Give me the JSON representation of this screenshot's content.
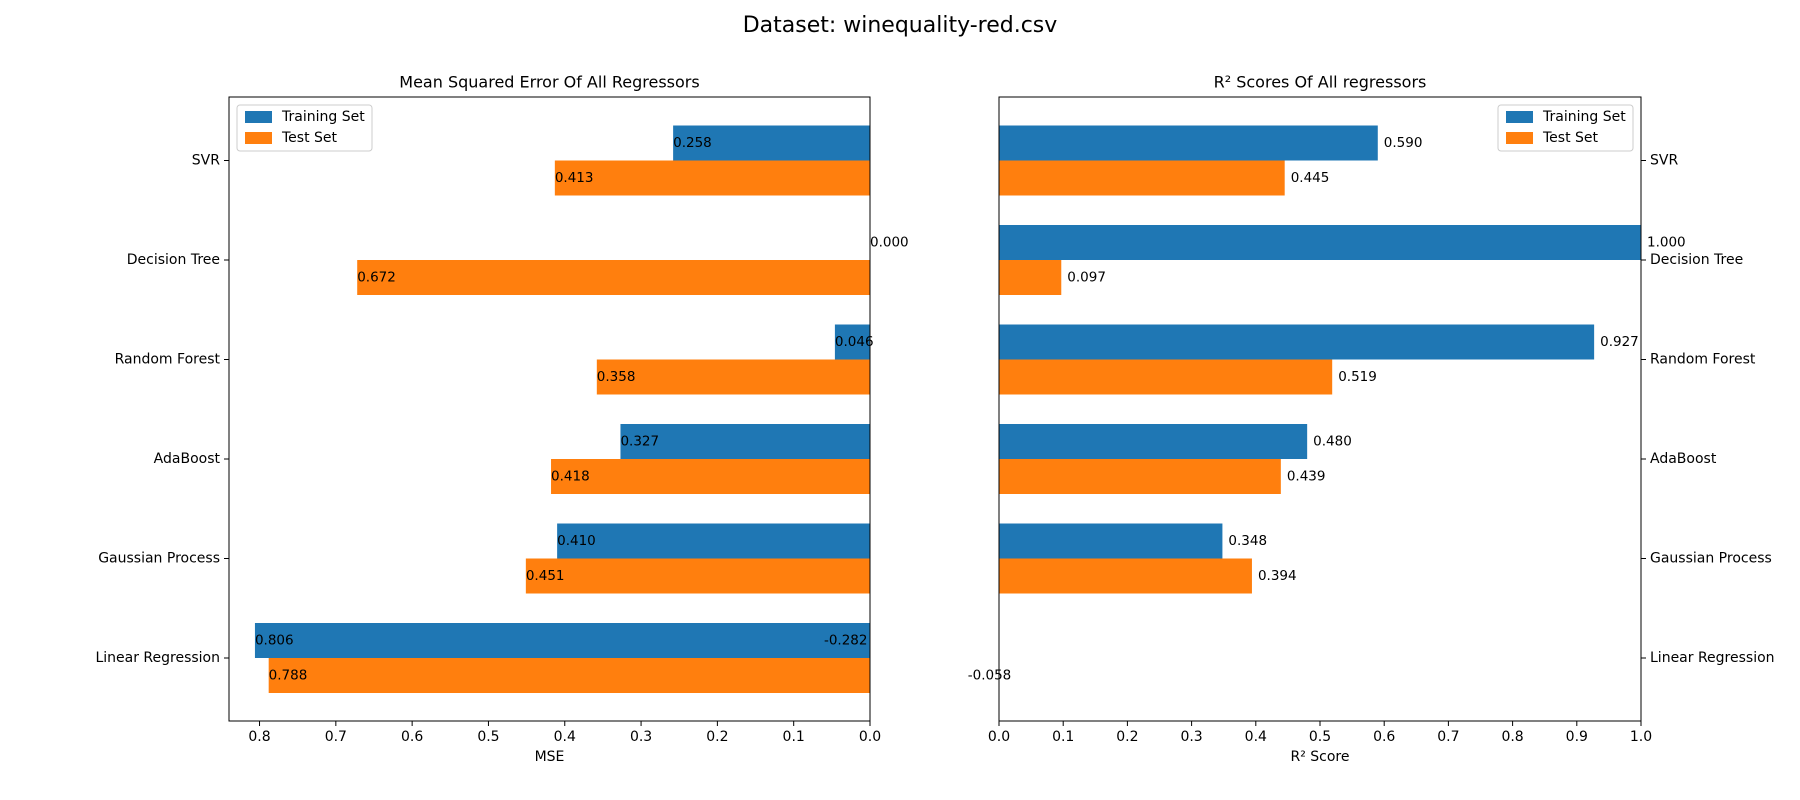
{
  "title": "Dataset: winequality-red.csv",
  "chart_data": [
    {
      "type": "barh",
      "title": "Mean Squared Error Of All Regressors",
      "xlabel": "MSE",
      "categories": [
        "SVR",
        "Decision Tree",
        "Random Forest",
        "AdaBoost",
        "Gaussian Process",
        "Linear Regression"
      ],
      "series": [
        {
          "name": "Training Set",
          "color": "#1f77b4",
          "values": [
            0.258,
            0.0,
            0.046,
            0.327,
            0.41,
            0.806
          ],
          "value_labels": [
            "0.258",
            "0.000",
            "0.046",
            "0.327",
            "0.410",
            "0.806"
          ]
        },
        {
          "name": "Test Set",
          "color": "#ff7f0e",
          "values": [
            0.413,
            0.672,
            0.358,
            0.418,
            0.451,
            0.788
          ],
          "value_labels": [
            "0.413",
            "0.672",
            "0.358",
            "0.418",
            "0.451",
            "0.788"
          ]
        }
      ],
      "xlim": [
        0.84,
        0
      ],
      "xticks": [
        0.8,
        0.7,
        0.6,
        0.5,
        0.4,
        0.3,
        0.2,
        0.1,
        {
          "value": 0,
          "label": "0.0"
        }
      ],
      "legend": "upper left",
      "ytick_side": "left"
    },
    {
      "type": "barh",
      "title": "R² Scores Of All regressors",
      "xlabel": "R² Score",
      "categories": [
        "SVR",
        "Decision Tree",
        "Random Forest",
        "AdaBoost",
        "Gaussian Process",
        "Linear Regression"
      ],
      "series": [
        {
          "name": "Training Set",
          "color": "#1f77b4",
          "values": [
            0.59,
            1.0,
            0.927,
            0.48,
            0.348,
            -0.282
          ],
          "value_labels": [
            "0.590",
            "1.000",
            "0.927",
            "0.480",
            "0.348",
            "-0.282"
          ]
        },
        {
          "name": "Test Set",
          "color": "#ff7f0e",
          "values": [
            0.445,
            0.097,
            0.519,
            0.439,
            0.394,
            -0.058
          ],
          "value_labels": [
            "0.445",
            "0.097",
            "0.519",
            "0.439",
            "0.394",
            "-0.058"
          ]
        }
      ],
      "xlim": [
        0,
        1
      ],
      "xticks": [
        {
          "value": 0,
          "label": "0.0"
        },
        0.1,
        0.2,
        0.3,
        0.4,
        0.5,
        0.6,
        0.7,
        0.8,
        0.9,
        {
          "value": 1,
          "label": "1.0"
        }
      ],
      "legend": "upper right",
      "ytick_side": "right"
    }
  ]
}
